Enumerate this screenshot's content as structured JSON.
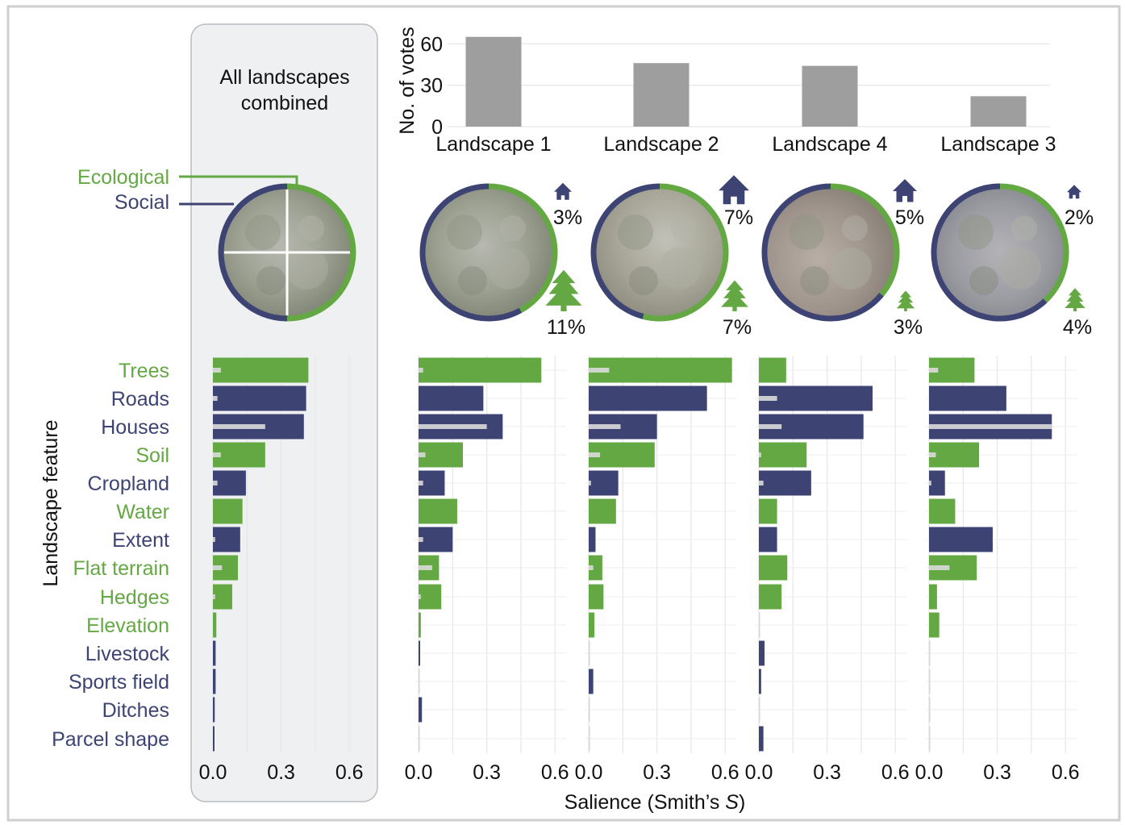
{
  "colors": {
    "ecological": "#64a844",
    "social": "#3d4474",
    "vote_bar": "#9e9e9e",
    "grid": "#e6e6e6",
    "panel_bg": "#eef0f2",
    "panel_border": "#b9bcc0",
    "frame": "#cfcfcf",
    "highlight": "#d9d9d9"
  },
  "labels": {
    "combined_title_line1": "All landscapes",
    "combined_title_line2": "combined",
    "legend_ecological": "Ecological",
    "legend_social": "Social",
    "votes_ylabel": "No. of votes",
    "y_axis_title": "Landscape feature",
    "x_axis_title_main": "Salience (Smith’s ",
    "x_axis_title_italic": "S",
    "x_axis_title_end": ")"
  },
  "chart_data": [
    {
      "type": "bar",
      "title": "",
      "ylabel": "No. of votes",
      "categories": [
        "Landscape 1",
        "Landscape 2",
        "Landscape 4",
        "Landscape 3"
      ],
      "values": [
        65,
        46,
        44,
        22
      ],
      "ylim": [
        0,
        66
      ],
      "yticks": [
        "0",
        "30",
        "60"
      ],
      "yticks_values": [
        0,
        30,
        60
      ]
    },
    {
      "type": "pie",
      "name": "landscape-composition",
      "landscapes": [
        {
          "name": "All landscapes combined",
          "social_share": 0.5,
          "social_pct": "",
          "ecological_pct": ""
        },
        {
          "name": "Landscape 1",
          "social_share": 0.58,
          "social_pct": "3%",
          "ecological_pct": "11%"
        },
        {
          "name": "Landscape 2",
          "social_share": 0.46,
          "social_pct": "7%",
          "ecological_pct": "7%"
        },
        {
          "name": "Landscape 4",
          "social_share": 0.64,
          "social_pct": "5%",
          "ecological_pct": "3%"
        },
        {
          "name": "Landscape 3",
          "social_share": 0.62,
          "social_pct": "2%",
          "ecological_pct": "4%"
        }
      ]
    },
    {
      "type": "bar",
      "orientation": "horizontal",
      "xlabel": "Salience (Smith’s S)",
      "ylabel": "Landscape feature",
      "xlim": [
        0,
        0.65
      ],
      "xticks": [
        "0.0",
        "0.3",
        "0.6"
      ],
      "xticks_values": [
        0,
        0.3,
        0.6
      ],
      "grid": true,
      "categories": [
        "Trees",
        "Roads",
        "Houses",
        "Soil",
        "Cropland",
        "Water",
        "Extent",
        "Flat terrain",
        "Hedges",
        "Elevation",
        "Livestock",
        "Sports field",
        "Ditches",
        "Parcel shape"
      ],
      "category_type": [
        "ecological",
        "social",
        "social",
        "ecological",
        "social",
        "ecological",
        "social",
        "ecological",
        "ecological",
        "ecological",
        "social",
        "social",
        "social",
        "social"
      ],
      "panels": [
        {
          "name": "All landscapes combined",
          "values": [
            0.42,
            0.41,
            0.4,
            0.23,
            0.145,
            0.13,
            0.12,
            0.11,
            0.085,
            0.015,
            0.012,
            0.012,
            0.008,
            0.005
          ],
          "highlight": [
            0.035,
            0.02,
            0.23,
            0.035,
            0.02,
            0.0,
            0.01,
            0.04,
            0.01,
            0.0,
            0.0,
            0.0,
            0.0,
            0.0
          ]
        },
        {
          "name": "Landscape 1",
          "values": [
            0.54,
            0.285,
            0.37,
            0.195,
            0.115,
            0.17,
            0.15,
            0.09,
            0.1,
            0.01,
            0.006,
            0.0,
            0.015,
            0.0
          ],
          "highlight": [
            0.02,
            0.0,
            0.3,
            0.03,
            0.02,
            0.0,
            0.02,
            0.06,
            0.01,
            0.0,
            0.0,
            0.0,
            0.0,
            0.0
          ]
        },
        {
          "name": "Landscape 2",
          "values": [
            0.63,
            0.52,
            0.3,
            0.29,
            0.13,
            0.12,
            0.03,
            0.06,
            0.065,
            0.025,
            0.0,
            0.02,
            0.0,
            0.0
          ],
          "highlight": [
            0.09,
            0.0,
            0.14,
            0.05,
            0.01,
            0.0,
            0.0,
            0.02,
            0.0,
            0.0,
            0.0,
            0.0,
            0.0,
            0.0
          ]
        },
        {
          "name": "Landscape 4",
          "values": [
            0.12,
            0.5,
            0.46,
            0.21,
            0.23,
            0.08,
            0.08,
            0.125,
            0.1,
            0.0,
            0.025,
            0.01,
            0.0,
            0.02
          ],
          "highlight": [
            0.0,
            0.08,
            0.1,
            0.01,
            0.02,
            0.0,
            0.0,
            0.0,
            0.0,
            0.0,
            0.0,
            0.0,
            0.0,
            0.0
          ]
        },
        {
          "name": "Landscape 3",
          "values": [
            0.2,
            0.34,
            0.54,
            0.22,
            0.07,
            0.115,
            0.28,
            0.21,
            0.035,
            0.045,
            0.0,
            0.0,
            0.0,
            0.0
          ],
          "highlight": [
            0.04,
            0.0,
            0.54,
            0.03,
            0.01,
            0.0,
            0.0,
            0.09,
            0.0,
            0.0,
            0.0,
            0.0,
            0.0,
            0.0
          ]
        }
      ]
    }
  ]
}
